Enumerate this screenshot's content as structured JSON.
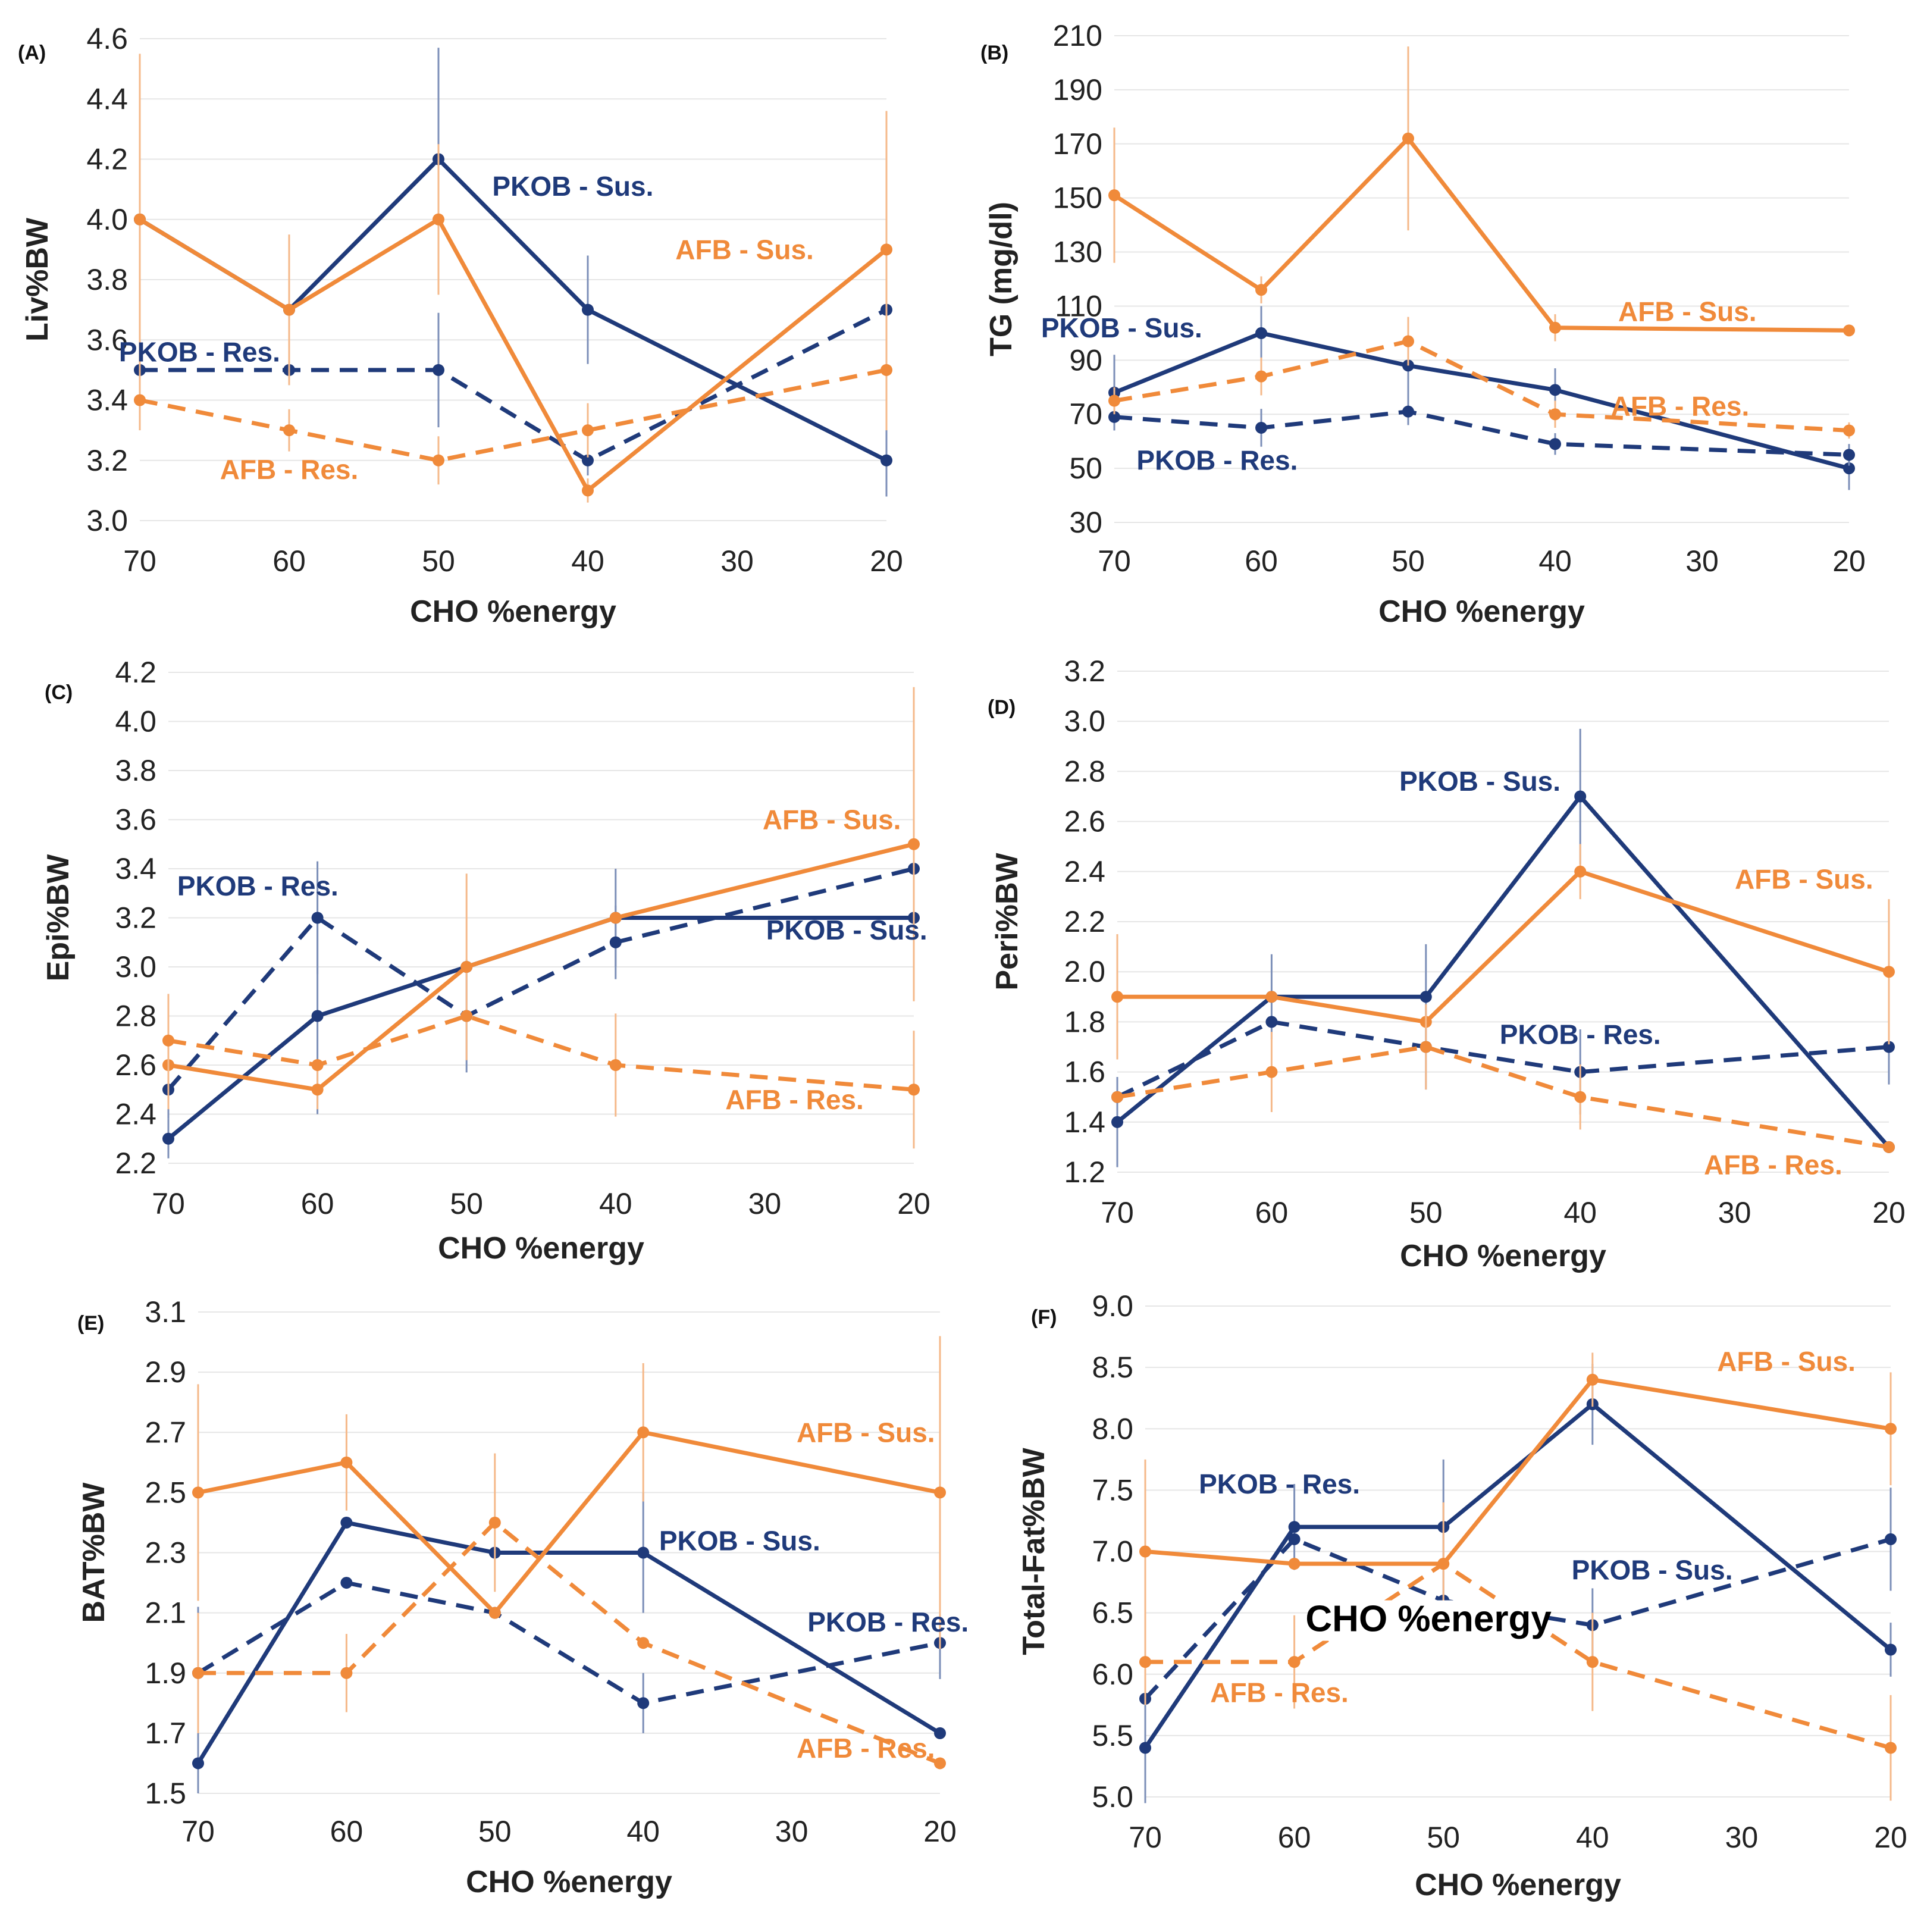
{
  "colors": {
    "pkob": "#1f3a7a",
    "afb": "#f08a3a",
    "grid": "#e6e6e6",
    "text": "#222222"
  },
  "chart_data": [
    {
      "type": "line",
      "panel_label": "(A)",
      "ylabel": "Liv%BW",
      "xlabel": "CHO %energy",
      "categories": [
        "70",
        "60",
        "50",
        "40",
        "30",
        "20"
      ],
      "x": [
        70,
        60,
        50,
        40,
        20
      ],
      "ylim": [
        3.0,
        4.6
      ],
      "yticks": [
        "3.0",
        "3.2",
        "3.4",
        "3.6",
        "3.8",
        "4.0",
        "4.2",
        "4.4",
        "4.6"
      ],
      "series": [
        {
          "name": "PKOB - Sus.",
          "group": "pkob",
          "style": "solid",
          "values": [
            4.0,
            3.7,
            4.2,
            3.7,
            3.2
          ],
          "err": [
            0.0,
            0.0,
            0.37,
            0.18,
            0.12
          ]
        },
        {
          "name": "PKOB - Res.",
          "group": "pkob",
          "style": "dashed",
          "values": [
            3.5,
            3.5,
            3.5,
            3.2,
            3.7
          ],
          "err": [
            0.0,
            0.05,
            0.19,
            0.05,
            0.0
          ]
        },
        {
          "name": "AFB - Sus.",
          "group": "afb",
          "style": "solid",
          "values": [
            4.0,
            3.7,
            4.0,
            3.1,
            3.9
          ],
          "err": [
            0.55,
            0.25,
            0.25,
            0.04,
            0.46
          ]
        },
        {
          "name": "AFB - Res.",
          "group": "afb",
          "style": "dashed",
          "values": [
            3.4,
            3.3,
            3.2,
            3.3,
            3.5
          ],
          "err": [
            0.1,
            0.07,
            0.08,
            0.09,
            0.2
          ]
        }
      ],
      "annotations": [
        {
          "text": "PKOB - Sus.",
          "group": "pkob",
          "at": [
            41,
            4.11
          ]
        },
        {
          "text": "AFB - Sus.",
          "group": "afb",
          "at": [
            29.5,
            3.9
          ]
        },
        {
          "text": "PKOB - Res.",
          "group": "pkob",
          "at": [
            66,
            3.56
          ]
        },
        {
          "text": "AFB - Res.",
          "group": "afb",
          "at": [
            60,
            3.17
          ]
        }
      ]
    },
    {
      "type": "line",
      "panel_label": "(B)",
      "ylabel": "TG (mg/dl)",
      "xlabel": "CHO %energy",
      "categories": [
        "70",
        "60",
        "50",
        "40",
        "30",
        "20"
      ],
      "x": [
        70,
        60,
        50,
        40,
        20
      ],
      "ylim": [
        30,
        210
      ],
      "yticks": [
        "30",
        "50",
        "70",
        "90",
        "110",
        "130",
        "150",
        "170",
        "190",
        "210"
      ],
      "series": [
        {
          "name": "PKOB - Sus.",
          "group": "pkob",
          "style": "solid",
          "values": [
            78,
            100,
            88,
            79,
            50
          ],
          "err": [
            14,
            10,
            16,
            8,
            8
          ]
        },
        {
          "name": "PKOB - Res.",
          "group": "pkob",
          "style": "dashed",
          "values": [
            69,
            65,
            71,
            59,
            55
          ],
          "err": [
            5,
            7,
            5,
            4,
            4
          ]
        },
        {
          "name": "AFB - Sus.",
          "group": "afb",
          "style": "solid",
          "values": [
            151,
            116,
            172,
            102,
            101
          ],
          "err": [
            25,
            5,
            34,
            5,
            0
          ]
        },
        {
          "name": "AFB - Res.",
          "group": "afb",
          "style": "dashed",
          "values": [
            75,
            84,
            97,
            70,
            64
          ],
          "err": [
            5,
            7,
            9,
            5,
            3
          ]
        }
      ],
      "annotations": [
        {
          "text": "PKOB - Sus.",
          "group": "pkob",
          "at": [
            69.5,
            102
          ]
        },
        {
          "text": "AFB - Sus.",
          "group": "afb",
          "at": [
            31,
            108
          ]
        },
        {
          "text": "AFB - Res.",
          "group": "afb",
          "at": [
            31.5,
            73
          ]
        },
        {
          "text": "PKOB - Res.",
          "group": "pkob",
          "at": [
            63,
            53
          ]
        }
      ]
    },
    {
      "type": "line",
      "panel_label": "(C)",
      "ylabel": "Epi%BW",
      "xlabel": "CHO %energy",
      "categories": [
        "70",
        "60",
        "50",
        "40",
        "30",
        "20"
      ],
      "x": [
        70,
        60,
        50,
        40,
        20
      ],
      "ylim": [
        2.2,
        4.2
      ],
      "yticks": [
        "2.2",
        "2.4",
        "2.6",
        "2.8",
        "3.0",
        "3.2",
        "3.4",
        "3.6",
        "3.8",
        "4.0",
        "4.2"
      ],
      "series": [
        {
          "name": "PKOB - Sus.",
          "group": "pkob",
          "style": "solid",
          "values": [
            2.3,
            2.8,
            3.0,
            3.2,
            3.2
          ],
          "err": [
            0.08,
            0.4,
            0.0,
            0.2,
            0.0
          ]
        },
        {
          "name": "PKOB - Res.",
          "group": "pkob",
          "style": "dashed",
          "values": [
            2.5,
            3.2,
            2.8,
            3.1,
            3.4
          ],
          "err": [
            0.12,
            0.23,
            0.23,
            0.15,
            0.0
          ]
        },
        {
          "name": "AFB - Sus.",
          "group": "afb",
          "style": "solid",
          "values": [
            2.6,
            2.5,
            3.0,
            3.2,
            3.5
          ],
          "err": [
            0.18,
            0.08,
            0.38,
            0.0,
            0.64
          ]
        },
        {
          "name": "AFB - Res.",
          "group": "afb",
          "style": "dashed",
          "values": [
            2.7,
            2.6,
            2.8,
            2.6,
            2.5
          ],
          "err": [
            0.19,
            0.0,
            0.0,
            0.21,
            0.24
          ]
        }
      ],
      "annotations": [
        {
          "text": "AFB - Sus.",
          "group": "afb",
          "at": [
            25.5,
            3.6
          ]
        },
        {
          "text": "PKOB - Res.",
          "group": "pkob",
          "at": [
            64,
            3.33
          ]
        },
        {
          "text": "PKOB - Sus.",
          "group": "pkob",
          "at": [
            24.5,
            3.15
          ]
        },
        {
          "text": "AFB - Res.",
          "group": "afb",
          "at": [
            28,
            2.46
          ]
        }
      ]
    },
    {
      "type": "line",
      "panel_label": "(D)",
      "ylabel": "Peri%BW",
      "xlabel": "CHO %energy",
      "categories": [
        "70",
        "60",
        "50",
        "40",
        "30",
        "20"
      ],
      "x": [
        70,
        60,
        50,
        40,
        20
      ],
      "ylim": [
        1.2,
        3.2
      ],
      "yticks": [
        "1.2",
        "1.4",
        "1.6",
        "1.8",
        "2.0",
        "2.2",
        "2.4",
        "2.6",
        "2.8",
        "3.0",
        "3.2"
      ],
      "series": [
        {
          "name": "PKOB - Sus.",
          "group": "pkob",
          "style": "solid",
          "values": [
            1.4,
            1.9,
            1.9,
            2.7,
            1.3
          ],
          "err": [
            0.18,
            0.17,
            0.21,
            0.27,
            0.0
          ]
        },
        {
          "name": "PKOB - Res.",
          "group": "pkob",
          "style": "dashed",
          "values": [
            1.5,
            1.8,
            1.7,
            1.6,
            1.7
          ],
          "err": [
            0.0,
            0.0,
            0.17,
            0.17,
            0.15
          ]
        },
        {
          "name": "AFB - Sus.",
          "group": "afb",
          "style": "solid",
          "values": [
            1.9,
            1.9,
            1.8,
            2.4,
            2.0
          ],
          "err": [
            0.25,
            0.0,
            0.0,
            0.11,
            0.29
          ]
        },
        {
          "name": "AFB - Res.",
          "group": "afb",
          "style": "dashed",
          "values": [
            1.5,
            1.6,
            1.7,
            1.5,
            1.3
          ],
          "err": [
            0.0,
            0.16,
            0.17,
            0.13,
            0.0
          ]
        }
      ],
      "annotations": [
        {
          "text": "PKOB - Sus.",
          "group": "pkob",
          "at": [
            46.5,
            2.76
          ]
        },
        {
          "text": "AFB - Sus.",
          "group": "afb",
          "at": [
            25.5,
            2.37
          ]
        },
        {
          "text": "PKOB - Res.",
          "group": "pkob",
          "at": [
            40,
            1.75
          ]
        },
        {
          "text": "AFB - Res.",
          "group": "afb",
          "at": [
            27.5,
            1.23
          ]
        }
      ]
    },
    {
      "type": "line",
      "panel_label": "(E)",
      "ylabel": "BAT%BW",
      "xlabel": "CHO %energy",
      "categories": [
        "70",
        "60",
        "50",
        "40",
        "30",
        "20"
      ],
      "x": [
        70,
        60,
        50,
        40,
        20
      ],
      "ylim": [
        1.5,
        3.1
      ],
      "yticks": [
        "1.5",
        "1.7",
        "1.9",
        "2.1",
        "2.3",
        "2.5",
        "2.7",
        "2.9",
        "3.1"
      ],
      "series": [
        {
          "name": "PKOB - Sus.",
          "group": "pkob",
          "style": "solid",
          "values": [
            1.6,
            2.4,
            2.3,
            2.3,
            1.7
          ],
          "err": [
            0.1,
            0.0,
            0.0,
            0.2,
            0.0
          ]
        },
        {
          "name": "PKOB - Res.",
          "group": "pkob",
          "style": "dashed",
          "values": [
            1.9,
            2.2,
            2.1,
            1.8,
            2.0
          ],
          "err": [
            0.22,
            0.0,
            0.0,
            0.1,
            0.12
          ]
        },
        {
          "name": "AFB - Sus.",
          "group": "afb",
          "style": "solid",
          "values": [
            2.5,
            2.6,
            2.1,
            2.7,
            2.5
          ],
          "err": [
            0.36,
            0.16,
            0.0,
            0.23,
            0.52
          ]
        },
        {
          "name": "AFB - Res.",
          "group": "afb",
          "style": "dashed",
          "values": [
            1.9,
            1.9,
            2.4,
            2.0,
            1.6
          ],
          "err": [
            0.2,
            0.13,
            0.23,
            0.0,
            0.0
          ]
        }
      ],
      "annotations": [
        {
          "text": "AFB - Sus.",
          "group": "afb",
          "at": [
            25,
            2.7
          ]
        },
        {
          "text": "PKOB - Sus.",
          "group": "pkob",
          "at": [
            33.5,
            2.34
          ]
        },
        {
          "text": "PKOB - Res.",
          "group": "pkob",
          "at": [
            23.5,
            2.07
          ]
        },
        {
          "text": "AFB - Res.",
          "group": "afb",
          "at": [
            25,
            1.65
          ]
        }
      ]
    },
    {
      "type": "line",
      "panel_label": "(F)",
      "ylabel": "Total-Fat%BW",
      "xlabel": "CHO %energy",
      "categories": [
        "70",
        "60",
        "50",
        "40",
        "30",
        "20"
      ],
      "x": [
        70,
        60,
        50,
        40,
        20
      ],
      "ylim": [
        5.0,
        9.0
      ],
      "yticks": [
        "5.0",
        "5.5",
        "6.0",
        "6.5",
        "7.0",
        "7.5",
        "8.0",
        "8.5",
        "9.0"
      ],
      "series": [
        {
          "name": "PKOB - Sus.",
          "group": "pkob",
          "style": "solid",
          "values": [
            5.4,
            7.2,
            7.2,
            8.2,
            6.2
          ],
          "err": [
            0.45,
            0.35,
            0.55,
            0.33,
            0.22
          ]
        },
        {
          "name": "PKOB - Res.",
          "group": "pkob",
          "style": "dashed",
          "values": [
            5.8,
            7.1,
            6.6,
            6.4,
            7.1
          ],
          "err": [
            0.0,
            0.0,
            0.0,
            0.3,
            0.42
          ]
        },
        {
          "name": "AFB - Sus.",
          "group": "afb",
          "style": "solid",
          "values": [
            7.0,
            6.9,
            6.9,
            8.4,
            8.0
          ],
          "err": [
            0.75,
            0.0,
            0.0,
            0.22,
            0.46
          ]
        },
        {
          "name": "AFB - Res.",
          "group": "afb",
          "style": "dashed",
          "values": [
            6.1,
            6.1,
            6.9,
            6.1,
            5.4
          ],
          "err": [
            0.35,
            0.38,
            0.5,
            0.4,
            0.43
          ]
        }
      ],
      "annotations": [
        {
          "text": "AFB - Sus.",
          "group": "afb",
          "at": [
            27,
            8.55
          ]
        },
        {
          "text": "PKOB - Res.",
          "group": "pkob",
          "at": [
            61,
            7.55
          ]
        },
        {
          "text": "PKOB - Sus.",
          "group": "pkob",
          "at": [
            36,
            6.85
          ]
        },
        {
          "text": "AFB - Res.",
          "group": "afb",
          "at": [
            61,
            5.85
          ]
        }
      ],
      "overlay_text": "CHO %energy"
    }
  ]
}
